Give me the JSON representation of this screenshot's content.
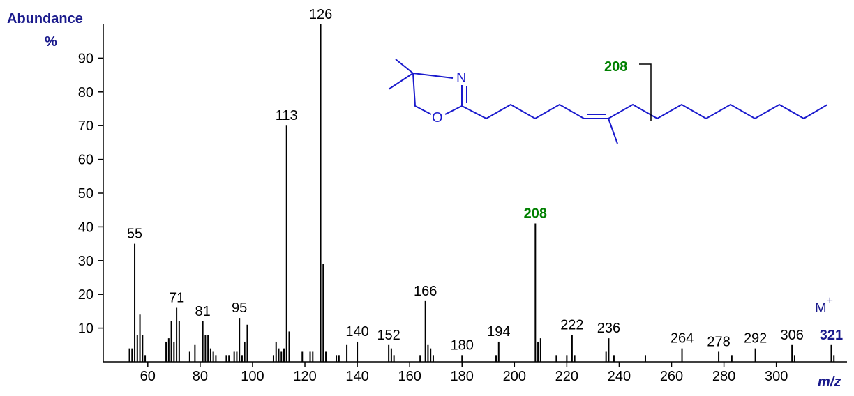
{
  "chart_data": {
    "type": "spectrum",
    "y_label_line1": "Abundance",
    "y_label_line2": "%",
    "x_label": "m/z",
    "molecular_ion": {
      "main": "M",
      "sup": "+"
    },
    "structure": {
      "n_label": "N",
      "o_label": "O",
      "cleavage_label": "208",
      "color": "#1a1acd",
      "cleavage_color": "#008000"
    },
    "color": "#000000",
    "x": [
      53,
      54,
      55,
      56,
      57,
      58,
      59,
      67,
      68,
      69,
      70,
      71,
      72,
      76,
      78,
      81,
      82,
      83,
      84,
      85,
      86,
      90,
      91,
      93,
      94,
      95,
      96,
      97,
      98,
      108,
      109,
      110,
      111,
      112,
      113,
      114,
      119,
      122,
      123,
      126,
      127,
      128,
      132,
      133,
      136,
      140,
      152,
      153,
      154,
      164,
      166,
      167,
      168,
      169,
      180,
      193,
      194,
      208,
      209,
      210,
      216,
      220,
      222,
      223,
      235,
      236,
      238,
      250,
      264,
      278,
      283,
      292,
      306,
      307,
      321,
      322
    ],
    "values": [
      4,
      4,
      35,
      8,
      14,
      8,
      2,
      6,
      7,
      12,
      6,
      16,
      12,
      3,
      5,
      12,
      8,
      8,
      4,
      3,
      2,
      2,
      2,
      3,
      3,
      13,
      2,
      6,
      11,
      2,
      6,
      4,
      3,
      4,
      70,
      9,
      3,
      3,
      3,
      100,
      29,
      3,
      2,
      2,
      5,
      6,
      5,
      4,
      2,
      2,
      18,
      5,
      4,
      2,
      2,
      2,
      6,
      41,
      6,
      7,
      2,
      2,
      8,
      2,
      3,
      7,
      2,
      2,
      4,
      3,
      2,
      4,
      5,
      2,
      5,
      2
    ],
    "labeled": [
      2,
      11,
      15,
      25,
      34,
      39,
      45,
      46,
      50,
      54,
      56,
      57,
      62,
      65,
      68,
      69,
      71,
      72,
      74
    ],
    "label_highlights": [
      {
        "index": 57,
        "color": "#008000"
      },
      {
        "index": 74,
        "color": "#1a1a8c"
      }
    ],
    "xlim": [
      43,
      327
    ],
    "ylim": [
      0,
      100
    ],
    "xticks": [
      60,
      80,
      100,
      120,
      140,
      160,
      180,
      200,
      220,
      240,
      260,
      280,
      300
    ],
    "yticks": [
      10,
      20,
      30,
      40,
      50,
      60,
      70,
      80,
      90
    ]
  }
}
